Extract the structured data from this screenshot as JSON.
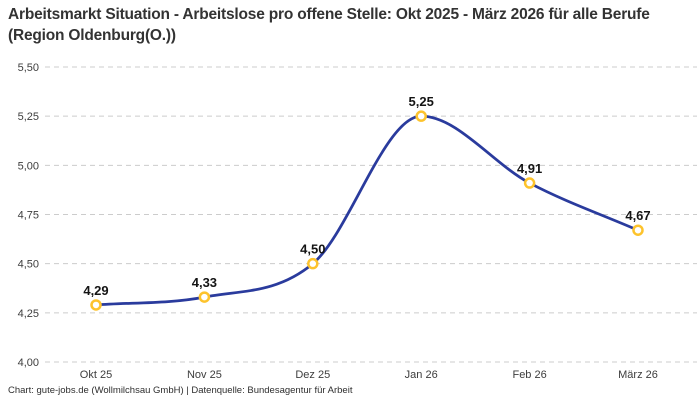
{
  "title": "Arbeitsmarkt Situation - Arbeitslose pro offene Stelle: Okt 2025 - März 2026 für alle Berufe (Region Oldenburg(O.))",
  "footer": "Chart: gute-jobs.de (Wollmilchsau GmbH) | Datenquelle: Bundesagentur für Arbeit",
  "chart_data": {
    "type": "line",
    "title": "Arbeitsmarkt Situation - Arbeitslose pro offene Stelle: Okt 2025 - März 2026 für alle Berufe (Region Oldenburg(O.))",
    "categories": [
      "Okt 25",
      "Nov 25",
      "Dez 25",
      "Jan 26",
      "Feb 26",
      "März 26"
    ],
    "values": [
      4.29,
      4.33,
      4.5,
      5.25,
      4.91,
      4.67
    ],
    "point_labels": [
      "4,29",
      "4,33",
      "4,50",
      "5,25",
      "4,91",
      "4,67"
    ],
    "y_ticks": [
      {
        "value": 5.5,
        "label": "5,50"
      },
      {
        "value": 5.25,
        "label": "5,25"
      },
      {
        "value": 5.0,
        "label": "5,00"
      },
      {
        "value": 4.75,
        "label": "4,75"
      },
      {
        "value": 4.5,
        "label": "4,50"
      },
      {
        "value": 4.25,
        "label": "4,25"
      },
      {
        "value": 4.0,
        "label": "4,00"
      }
    ],
    "ylim": [
      4.0,
      5.5
    ],
    "xlabel": "",
    "ylabel": "",
    "grid": "horizontal-dashed",
    "legend": "none",
    "colors": {
      "line": "#2a3b9d",
      "marker_stroke": "#fdc32c",
      "marker_fill": "#ffffff",
      "grid": "#cccccc",
      "tick_label": "#3d3d3d",
      "value_label": "#141414",
      "title": "#333333"
    }
  }
}
